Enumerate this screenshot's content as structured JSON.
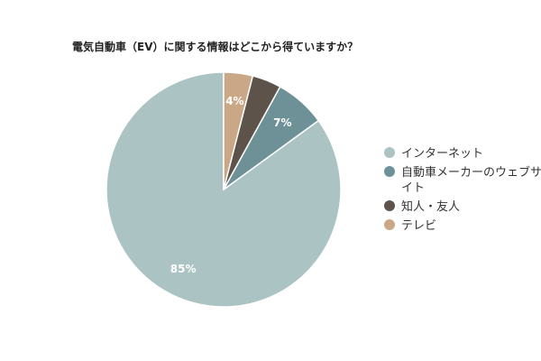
{
  "chart_data": {
    "type": "pie",
    "title": "電気自動車（EV）に関する情報はどこから得ていますか？",
    "start_angle_deg": 0,
    "direction": "counterclockwise",
    "slices": [
      {
        "name": "インターネット",
        "value": 85,
        "label": "85%",
        "color": "#abc3c3"
      },
      {
        "name": "自動車メーカーのウェブサイト",
        "value": 7,
        "label": "7%",
        "color": "#6d9196"
      },
      {
        "name": "知人・友人",
        "value": 4,
        "label": "",
        "color": "#5d534a"
      },
      {
        "name": "テレビ",
        "value": 4,
        "label": "4%",
        "color": "#c9a787"
      }
    ],
    "legend": {
      "placement": "right",
      "entries": [
        {
          "lines": [
            "インターネット"
          ]
        },
        {
          "lines": [
            "自動車メーカーのウェブサ",
            "イト"
          ]
        },
        {
          "lines": [
            "知人・友人"
          ]
        },
        {
          "lines": [
            "テレビ"
          ]
        }
      ]
    }
  }
}
